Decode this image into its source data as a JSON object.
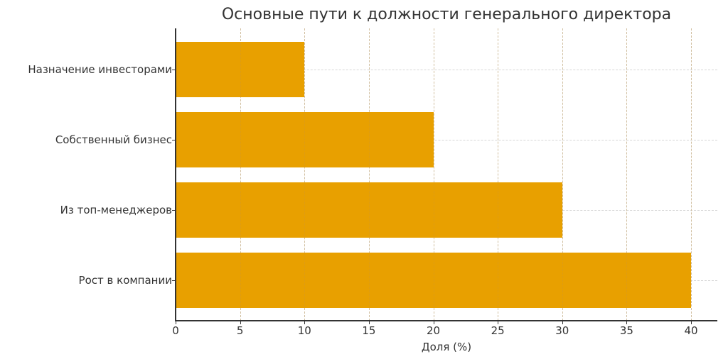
{
  "chart_data": {
    "type": "bar",
    "orientation": "horizontal",
    "title": "Основные пути к должности генерального директора",
    "xlabel": "Доля (%)",
    "ylabel": "",
    "categories": [
      "Рост в компании",
      "Из топ-менеджеров",
      "Собственный бизнес",
      "Назначение инвесторами"
    ],
    "values": [
      40,
      30,
      20,
      10
    ],
    "xlim": [
      0,
      42
    ],
    "xticks": [
      0,
      5,
      10,
      15,
      20,
      25,
      30,
      35,
      40
    ],
    "grid": true,
    "bar_color": "#e8a000",
    "legend": null
  },
  "chart": {
    "title": "Основные пути к должности генерального директора",
    "xlabel": "Доля (%)",
    "xticks": [
      "0",
      "5",
      "10",
      "15",
      "20",
      "25",
      "30",
      "35",
      "40"
    ],
    "yticks": [
      "Назначение инвесторами",
      "Собственный бизнес",
      "Из топ-менеджеров",
      "Рост в компании"
    ]
  }
}
